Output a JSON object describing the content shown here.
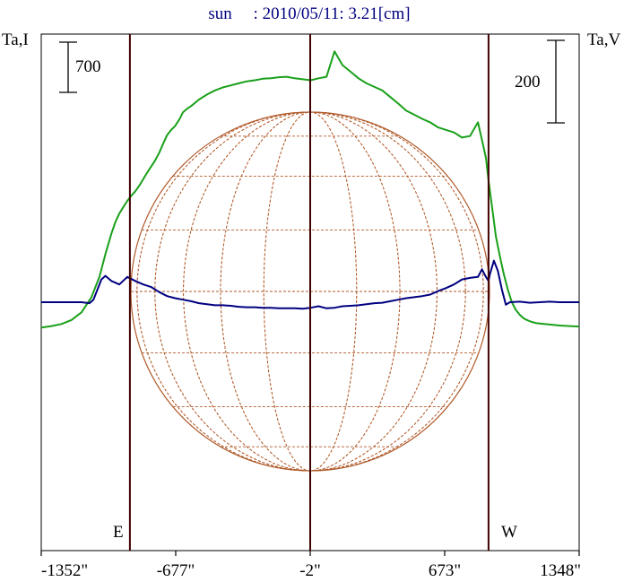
{
  "chart_data": {
    "type": "line",
    "title": "sun     : 2010/05/11: 3.21[cm]",
    "ylabel_left": "Ta,I",
    "ylabel_right": "Ta,V",
    "scale_left": "700",
    "scale_right": "200",
    "limb_left": "E",
    "limb_right": "W",
    "x_ticks": [
      "-1352\"",
      "-677\"",
      "-2\"",
      "673\"",
      "1348\""
    ],
    "x_tick_values": [
      -1352,
      -677,
      -2,
      673,
      1348
    ],
    "xlim": [
      -1352,
      1348
    ],
    "limb_positions": [
      -907,
      -2,
      893
    ],
    "colors": {
      "intensity": "#1aa01a",
      "polarization": "#000080",
      "disk": "#b05a2a",
      "limb_line": "#400000",
      "title": "#000080"
    },
    "series": [
      {
        "key": "intensity",
        "x": [
          -1352,
          -1300,
          -1250,
          -1200,
          -1150,
          -1100,
          -1060,
          -1030,
          -1000,
          -980,
          -960,
          -940,
          -920,
          -900,
          -880,
          -860,
          -840,
          -820,
          -800,
          -780,
          -760,
          -740,
          -720,
          -700,
          -680,
          -660,
          -640,
          -620,
          -600,
          -560,
          -520,
          -480,
          -440,
          -400,
          -360,
          -320,
          -280,
          -240,
          -200,
          -160,
          -120,
          -80,
          -40,
          0,
          40,
          80,
          120,
          160,
          200,
          240,
          280,
          320,
          360,
          400,
          440,
          480,
          520,
          560,
          600,
          640,
          680,
          720,
          760,
          800,
          840,
          860,
          880,
          893,
          910,
          930,
          950,
          970,
          990,
          1010,
          1030,
          1050,
          1070,
          1090,
          1110,
          1130,
          1150,
          1200,
          1250,
          1300,
          1348
        ],
        "y": [
          -0.5,
          -0.47,
          -0.43,
          -0.35,
          -0.2,
          0.1,
          0.5,
          0.95,
          1.35,
          1.58,
          1.75,
          1.88,
          2.0,
          2.1,
          2.19,
          2.3,
          2.43,
          2.56,
          2.68,
          2.8,
          2.95,
          3.13,
          3.3,
          3.4,
          3.48,
          3.6,
          3.75,
          3.82,
          3.87,
          4.0,
          4.1,
          4.18,
          4.24,
          4.28,
          4.32,
          4.36,
          4.38,
          4.41,
          4.42,
          4.44,
          4.45,
          4.42,
          4.4,
          4.38,
          4.42,
          4.45,
          4.95,
          4.68,
          4.55,
          4.42,
          4.32,
          4.25,
          4.18,
          4.05,
          3.92,
          3.78,
          3.7,
          3.62,
          3.55,
          3.45,
          3.4,
          3.35,
          3.25,
          3.28,
          3.55,
          3.2,
          2.85,
          2.4,
          1.9,
          1.3,
          0.9,
          0.55,
          0.25,
          0.0,
          -0.15,
          -0.25,
          -0.32,
          -0.36,
          -0.39,
          -0.41,
          -0.42,
          -0.44,
          -0.46,
          -0.47,
          -0.48
        ]
      },
      {
        "key": "polarization",
        "x": [
          -1352,
          -1250,
          -1150,
          -1110,
          -1090,
          -1070,
          -1050,
          -1030,
          -1000,
          -960,
          -920,
          -880,
          -840,
          -800,
          -760,
          -720,
          -680,
          -640,
          -600,
          -560,
          -520,
          -480,
          -440,
          -400,
          -360,
          -320,
          -280,
          -240,
          -200,
          -160,
          -120,
          -80,
          -40,
          0,
          40,
          80,
          120,
          160,
          200,
          240,
          280,
          320,
          360,
          400,
          440,
          480,
          520,
          560,
          600,
          640,
          680,
          720,
          760,
          800,
          840,
          860,
          880,
          893,
          900,
          920,
          940,
          960,
          980,
          1000,
          1050,
          1100,
          1150,
          1200,
          1250,
          1300,
          1348
        ],
        "y": [
          0,
          0,
          0,
          -0.02,
          0.05,
          0.25,
          0.45,
          0.52,
          0.42,
          0.35,
          0.5,
          0.42,
          0.35,
          0.3,
          0.2,
          0.12,
          0.08,
          0.05,
          0.02,
          -0.02,
          -0.04,
          -0.06,
          -0.06,
          -0.07,
          -0.09,
          -0.1,
          -0.1,
          -0.11,
          -0.11,
          -0.12,
          -0.12,
          -0.12,
          -0.13,
          -0.11,
          -0.08,
          -0.12,
          -0.11,
          -0.08,
          -0.07,
          -0.06,
          -0.04,
          -0.02,
          -0.01,
          0.02,
          0.05,
          0.08,
          0.1,
          0.12,
          0.15,
          0.22,
          0.28,
          0.35,
          0.45,
          0.48,
          0.5,
          0.65,
          0.5,
          0.42,
          0.55,
          0.82,
          0.62,
          0.25,
          -0.05,
          0.0,
          0.01,
          -0.01,
          0.0,
          0.01,
          0.0,
          0.0,
          0.0
        ]
      }
    ]
  }
}
